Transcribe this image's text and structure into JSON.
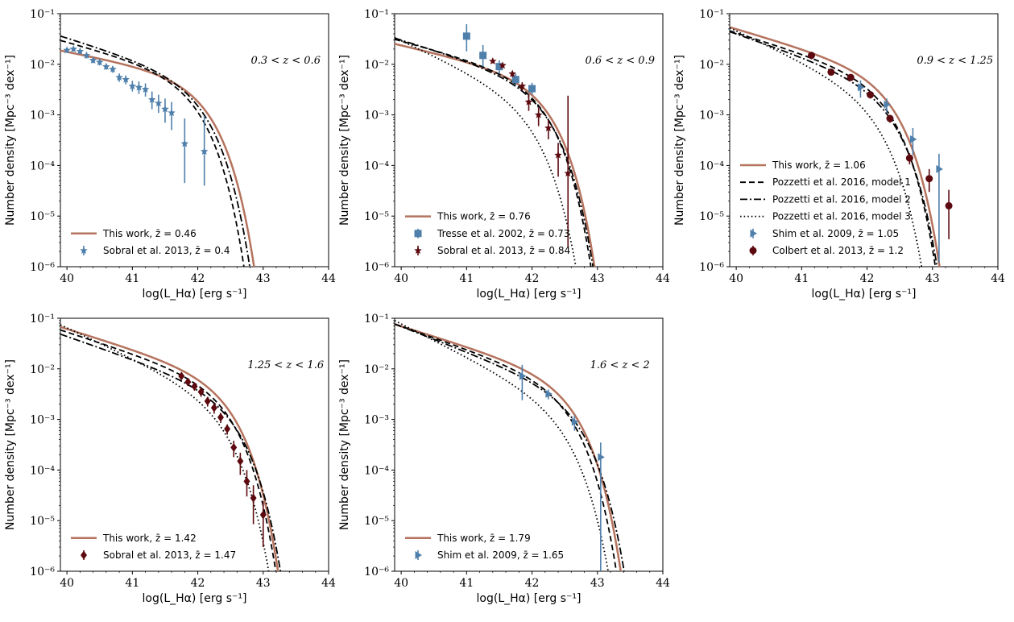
{
  "chart_data": [
    {
      "type": "line",
      "annotation": "0.3 < z < 0.6",
      "xlabel": "log(L_Hα) [erg s⁻¹]",
      "ylabel": "Number density [Mpc⁻³ dex⁻¹]",
      "xlim": [
        39.9,
        44
      ],
      "ylim": [
        1e-06,
        0.1
      ],
      "yscale": "log",
      "xticks": [
        "40",
        "41",
        "42",
        "43",
        "44"
      ],
      "yticks": [
        "10⁻⁶",
        "10⁻⁵",
        "10⁻⁴",
        "10⁻³",
        "10⁻²",
        "10⁻¹"
      ],
      "legend_position": "lower-left",
      "series": [
        {
          "name": "This work, z̄ = 0.46",
          "style": "solid",
          "color": "#b5735e",
          "log_phi_star": -2.6,
          "log_L_star": 41.95,
          "alpha": -1.25
        },
        {
          "name": "",
          "style": "dashed",
          "color": "#000000",
          "log_phi_star": -2.55,
          "log_L_star": 41.8,
          "alpha": -1.35
        },
        {
          "name": "",
          "style": "dashdot",
          "color": "#000000",
          "log_phi_star": -2.6,
          "log_L_star": 41.9,
          "alpha": -1.4
        }
      ],
      "points": [
        {
          "name": "Sobral et al. 2013, z̄ = 0.4",
          "marker": "star",
          "color": "#4f7fab",
          "x": [
            40.0,
            40.1,
            40.2,
            40.3,
            40.4,
            40.5,
            40.6,
            40.7,
            40.8,
            40.9,
            41.0,
            41.1,
            41.2,
            41.3,
            41.4,
            41.5,
            41.6,
            41.8,
            42.1
          ],
          "y": [
            0.019,
            0.02,
            0.018,
            0.015,
            0.012,
            0.011,
            0.009,
            0.008,
            0.0055,
            0.005,
            0.0037,
            0.0035,
            0.0032,
            0.002,
            0.0017,
            0.0013,
            0.0011,
            0.00027,
            0.00019
          ],
          "ylo": [
            0.017,
            0.018,
            0.016,
            0.013,
            0.0105,
            0.0095,
            0.0078,
            0.0068,
            0.0045,
            0.004,
            0.0029,
            0.0026,
            0.0023,
            0.0013,
            0.0011,
            0.0007,
            0.0005,
            4.5e-05,
            4e-05
          ],
          "yhi": [
            0.021,
            0.022,
            0.02,
            0.017,
            0.0135,
            0.0125,
            0.0102,
            0.0092,
            0.0066,
            0.006,
            0.0047,
            0.0046,
            0.0042,
            0.0029,
            0.0025,
            0.0021,
            0.0018,
            0.00085,
            0.00095
          ]
        }
      ]
    },
    {
      "type": "line",
      "annotation": "0.6 < z < 0.9",
      "xlabel": "log(L_Hα) [erg s⁻¹]",
      "ylabel": "Number density [Mpc⁻³ dex⁻¹]",
      "xlim": [
        39.9,
        44
      ],
      "ylim": [
        1e-06,
        0.1
      ],
      "yscale": "log",
      "xticks": [
        "40",
        "41",
        "42",
        "43",
        "44"
      ],
      "yticks": [
        "10⁻⁶",
        "10⁻⁵",
        "10⁻⁴",
        "10⁻³",
        "10⁻²",
        "10⁻¹"
      ],
      "legend_position": "lower-left",
      "series": [
        {
          "name": "This work, z̄ = 0.76",
          "style": "solid",
          "color": "#b5735e",
          "log_phi_star": -2.6,
          "log_L_star": 42.05,
          "alpha": -1.3
        },
        {
          "name": "",
          "style": "dashed",
          "color": "#000000",
          "log_phi_star": -2.6,
          "log_L_star": 42.0,
          "alpha": -1.35
        },
        {
          "name": "",
          "style": "dashdot",
          "color": "#000000",
          "log_phi_star": -2.7,
          "log_L_star": 42.05,
          "alpha": -1.4
        },
        {
          "name": "",
          "style": "dotted",
          "color": "#000000",
          "log_phi_star": -3.0,
          "log_L_star": 41.85,
          "alpha": -1.6
        }
      ],
      "points": [
        {
          "name": "Tresse et al. 2002, z̄ = 0.73",
          "marker": "square",
          "color": "#4f7fab",
          "x": [
            41.0,
            41.25,
            41.5,
            41.75,
            42.0
          ],
          "y": [
            0.036,
            0.015,
            0.009,
            0.005,
            0.0033
          ],
          "ylo": [
            0.018,
            0.009,
            0.0065,
            0.0038,
            0.0025
          ],
          "yhi": [
            0.062,
            0.024,
            0.012,
            0.0065,
            0.0043
          ]
        },
        {
          "name": "Sobral et al. 2013, z̄ = 0.84",
          "marker": "star",
          "color": "#5c0a0f",
          "x": [
            41.4,
            41.55,
            41.7,
            41.85,
            41.95,
            42.1,
            42.25,
            42.4,
            42.55
          ],
          "y": [
            0.0115,
            0.0095,
            0.0065,
            0.0037,
            0.0018,
            0.001,
            0.00055,
            0.00016,
            7e-05
          ],
          "ylo": [
            0.0105,
            0.0085,
            0.0056,
            0.003,
            0.0012,
            0.0006,
            0.00033,
            6e-05,
            2.5e-06
          ],
          "yhi": [
            0.0125,
            0.0105,
            0.0074,
            0.0044,
            0.0025,
            0.0014,
            0.0008,
            0.00028,
            0.0024
          ]
        }
      ]
    },
    {
      "type": "line",
      "annotation": "0.9 < z < 1.25",
      "xlabel": "log(L_Hα) [erg s⁻¹]",
      "ylabel": "Number density [Mpc⁻³ dex⁻¹]",
      "xlim": [
        39.9,
        44
      ],
      "ylim": [
        1e-06,
        0.1
      ],
      "yscale": "log",
      "xticks": [
        "40",
        "41",
        "42",
        "43",
        "44"
      ],
      "yticks": [
        "10⁻⁶",
        "10⁻⁵",
        "10⁻⁴",
        "10⁻³",
        "10⁻²",
        "10⁻¹"
      ],
      "legend_position": "lower-left",
      "series": [
        {
          "name": "This work, z̄ = 1.06",
          "style": "solid",
          "color": "#b5735e",
          "log_phi_star": -2.5,
          "log_L_star": 42.2,
          "alpha": -1.38
        },
        {
          "name": "Pozzetti et al. 2016, model 1",
          "style": "dashed",
          "color": "#000000",
          "log_phi_star": -2.6,
          "log_L_star": 42.15,
          "alpha": -1.4
        },
        {
          "name": "Pozzetti et al. 2016, model 2",
          "style": "dashdot",
          "color": "#000000",
          "log_phi_star": -2.75,
          "log_L_star": 42.2,
          "alpha": -1.45
        },
        {
          "name": "Pozzetti et al. 2016, model 3",
          "style": "dotted",
          "color": "#000000",
          "log_phi_star": -2.9,
          "log_L_star": 42.0,
          "alpha": -1.6
        }
      ],
      "points": [
        {
          "name": "Shim et al. 2009, z̄ = 1.05",
          "marker": "triangle-right",
          "color": "#4f7fab",
          "x": [
            41.9,
            42.3,
            42.7,
            43.1
          ],
          "y": [
            0.0035,
            0.0016,
            0.00033,
            8.5e-05
          ],
          "ylo": [
            0.0022,
            0.0011,
            0.00016,
            1.2e-06
          ],
          "yhi": [
            0.0048,
            0.0021,
            0.00055,
            0.00017
          ]
        },
        {
          "name": "Colbert et al. 2013, z̄ = 1.2",
          "marker": "circle",
          "color": "#5c0a0f",
          "x": [
            41.15,
            41.45,
            41.75,
            42.05,
            42.35,
            42.65,
            42.95,
            43.25
          ],
          "y": [
            0.015,
            0.007,
            0.0055,
            0.0025,
            0.00085,
            0.00014,
            5.5e-05,
            1.6e-05
          ],
          "ylo": [
            0.0125,
            0.006,
            0.0047,
            0.0021,
            0.0007,
            0.000105,
            3e-05,
            3.5e-06
          ],
          "yhi": [
            0.0175,
            0.008,
            0.0063,
            0.0029,
            0.001,
            0.000175,
            8.5e-05,
            3.3e-05
          ]
        }
      ]
    },
    {
      "type": "line",
      "annotation": "1.25 < z < 1.6",
      "xlabel": "log(L_Hα) [erg s⁻¹]",
      "ylabel": "Number density [Mpc⁻³ dex⁻¹]",
      "xlim": [
        39.9,
        44
      ],
      "ylim": [
        1e-06,
        0.1
      ],
      "yscale": "log",
      "xticks": [
        "40",
        "41",
        "42",
        "43",
        "44"
      ],
      "yticks": [
        "10⁻⁶",
        "10⁻⁵",
        "10⁻⁴",
        "10⁻³",
        "10⁻²",
        "10⁻¹"
      ],
      "legend_position": "lower-left",
      "series": [
        {
          "name": "This work, z̄ = 1.42",
          "style": "solid",
          "color": "#b5735e",
          "log_phi_star": -2.5,
          "log_L_star": 42.32,
          "alpha": -1.4
        },
        {
          "name": "",
          "style": "dashed",
          "color": "#000000",
          "log_phi_star": -2.6,
          "log_L_star": 42.3,
          "alpha": -1.42
        },
        {
          "name": "",
          "style": "dashdot",
          "color": "#000000",
          "log_phi_star": -2.8,
          "log_L_star": 42.4,
          "alpha": -1.45
        },
        {
          "name": "",
          "style": "dotted",
          "color": "#000000",
          "log_phi_star": -2.9,
          "log_L_star": 42.25,
          "alpha": -1.6
        }
      ],
      "points": [
        {
          "name": "Sobral et al. 2013, z̄ = 1.47",
          "marker": "diamond",
          "color": "#5c0a0f",
          "x": [
            41.75,
            41.85,
            41.95,
            42.05,
            42.15,
            42.25,
            42.35,
            42.45,
            42.55,
            42.65,
            42.75,
            42.85,
            43.0
          ],
          "y": [
            0.0072,
            0.0055,
            0.0045,
            0.0035,
            0.0023,
            0.0017,
            0.0011,
            0.00065,
            0.00028,
            0.00015,
            6e-05,
            2.8e-05,
            1.3e-05
          ],
          "ylo": [
            0.0062,
            0.0046,
            0.0037,
            0.0028,
            0.0018,
            0.0013,
            0.00085,
            0.0005,
            0.00018,
            8e-05,
            3e-05,
            8.5e-06,
            3e-06
          ],
          "yhi": [
            0.0082,
            0.0064,
            0.0053,
            0.0042,
            0.0028,
            0.0021,
            0.00135,
            0.0008,
            0.00038,
            0.00022,
            0.0001,
            5e-05,
            2.4e-05
          ]
        }
      ]
    },
    {
      "type": "line",
      "annotation": "1.6 < z < 2",
      "xlabel": "log(L_Hα) [erg s⁻¹]",
      "ylabel": "Number density [Mpc⁻³ dex⁻¹]",
      "xlim": [
        39.9,
        44
      ],
      "ylim": [
        1e-06,
        0.1
      ],
      "yscale": "log",
      "xticks": [
        "40",
        "41",
        "42",
        "43",
        "44"
      ],
      "yticks": [
        "10⁻⁶",
        "10⁻⁵",
        "10⁻⁴",
        "10⁻³",
        "10⁻²",
        "10⁻¹"
      ],
      "legend_position": "lower-left",
      "series": [
        {
          "name": "This work, z̄ = 1.79",
          "style": "solid",
          "color": "#b5735e",
          "log_phi_star": -2.5,
          "log_L_star": 42.45,
          "alpha": -1.4
        },
        {
          "name": "",
          "style": "dashed",
          "color": "#000000",
          "log_phi_star": -2.6,
          "log_L_star": 42.4,
          "alpha": -1.45
        },
        {
          "name": "",
          "style": "dashdot",
          "color": "#000000",
          "log_phi_star": -2.8,
          "log_L_star": 42.55,
          "alpha": -1.5
        },
        {
          "name": "",
          "style": "dotted",
          "color": "#000000",
          "log_phi_star": -3.0,
          "log_L_star": 42.35,
          "alpha": -1.65
        }
      ],
      "points": [
        {
          "name": "Shim et al. 2009, z̄ = 1.65",
          "marker": "triangle-right",
          "color": "#4f7fab",
          "x": [
            41.85,
            42.25,
            42.65,
            43.05
          ],
          "y": [
            0.0072,
            0.0032,
            0.0009,
            0.00018
          ],
          "ylo": [
            0.0024,
            0.0025,
            0.0006,
            5e-07
          ],
          "yhi": [
            0.012,
            0.0039,
            0.0012,
            0.00035
          ]
        }
      ]
    }
  ]
}
